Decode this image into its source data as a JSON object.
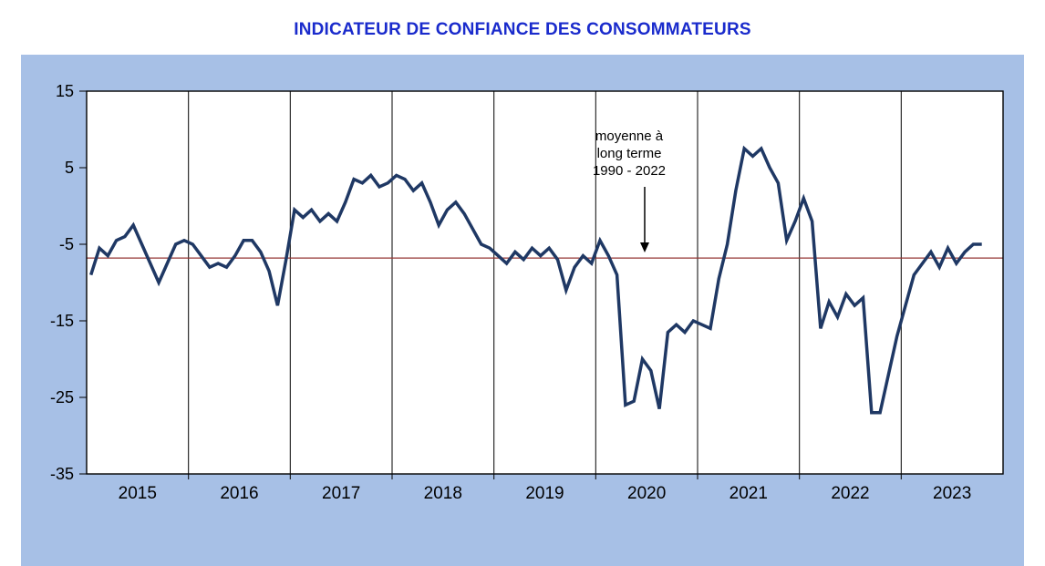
{
  "chart_data": {
    "type": "line",
    "title": "INDICATEUR DE CONFIANCE DES CONSOMMATEURS",
    "xlabel": "",
    "ylabel": "",
    "ylim": [
      -35,
      15
    ],
    "y_ticks": [
      15,
      5,
      -5,
      -15,
      -25,
      -35
    ],
    "x_labels": [
      "2015",
      "2016",
      "2017",
      "2018",
      "2019",
      "2020",
      "2021",
      "2022",
      "2023"
    ],
    "x_start": "2015-01",
    "x_interval": "monthly",
    "grid": "vertical-year-lines",
    "legend_position": "none",
    "series": [
      {
        "name": "Indicateur de confiance des consommateurs",
        "values": [
          -9,
          -5.5,
          -6.5,
          -4.5,
          -4,
          -2.5,
          -5,
          -7.5,
          -10,
          -7.5,
          -5,
          -4.5,
          -5,
          -6.5,
          -8,
          -7.5,
          -8,
          -6.5,
          -4.5,
          -4.5,
          -6,
          -8.5,
          -13,
          -7,
          -0.5,
          -1.5,
          -0.5,
          -2,
          -1,
          -2,
          0.5,
          3.5,
          3,
          4,
          2.5,
          3,
          4,
          3.5,
          2,
          3,
          0.5,
          -2.5,
          -0.5,
          0.5,
          -1,
          -3,
          -5,
          -5.5,
          -6.5,
          -7.5,
          -6,
          -7,
          -5.5,
          -6.5,
          -5.5,
          -7,
          -11,
          -8,
          -6.5,
          -7.5,
          -4.5,
          -6.5,
          -9,
          -26,
          -25.5,
          -20,
          -21.5,
          -26.5,
          -16.5,
          -15.5,
          -16.5,
          -15,
          -15.5,
          -16,
          -9.5,
          -5,
          2,
          7.5,
          6.5,
          7.5,
          5,
          3,
          -4.5,
          -2,
          1,
          -2,
          -16,
          -12.5,
          -14.5,
          -11.5,
          -13,
          -12,
          -27,
          -27,
          -22,
          -17,
          -13,
          -9,
          -7.5,
          -6,
          -8,
          -5.5,
          -7.5,
          -6,
          -5,
          -5
        ]
      }
    ],
    "average_line": {
      "value": -6.8,
      "label": "moyenne à long terme 1990 - 2022"
    },
    "annotation": {
      "lines": [
        "moyenne à",
        "long terme",
        "1990 - 2022"
      ]
    },
    "colors": {
      "title": "#1A2BCC",
      "panel_background": "#A7C0E6",
      "plot_background": "#FFFFFF",
      "line": "#1F3864",
      "average_line": "#953735",
      "axis": "#000000"
    }
  }
}
